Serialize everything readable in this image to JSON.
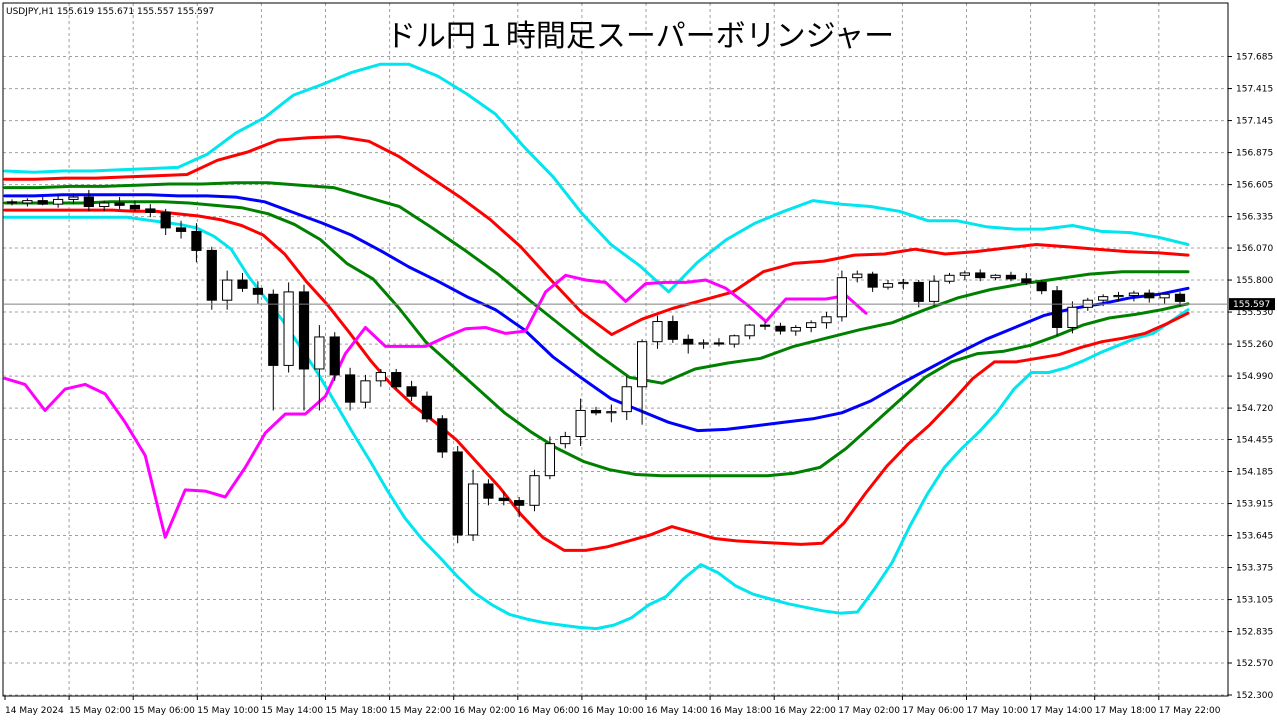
{
  "window": {
    "symbol_info": "USDJPY,H1  155.619 155.671 155.557 155.597"
  },
  "chart_data": {
    "type": "candlestick",
    "title": "ドル円１時間足スーパーボリンジャー",
    "ylim": [
      152.3,
      157.85
    ],
    "y_ticks": [
      "157.685",
      "157.415",
      "157.145",
      "156.875",
      "156.605",
      "156.335",
      "156.070",
      "155.800",
      "155.530",
      "155.260",
      "154.990",
      "154.720",
      "154.455",
      "154.185",
      "153.915",
      "153.645",
      "153.375",
      "153.105",
      "152.835",
      "152.570",
      "152.300"
    ],
    "x_ticks": [
      "14 May 2024",
      "15 May 02:00",
      "15 May 06:00",
      "15 May 10:00",
      "15 May 14:00",
      "15 May 18:00",
      "15 May 22:00",
      "16 May 02:00",
      "16 May 06:00",
      "16 May 10:00",
      "16 May 14:00",
      "16 May 18:00",
      "16 May 22:00",
      "17 May 02:00",
      "17 May 06:00",
      "17 May 10:00",
      "17 May 14:00",
      "17 May 18:00",
      "17 May 22:00"
    ],
    "current_price": "155.597",
    "candles": [
      {
        "o": 156.46,
        "h": 156.48,
        "l": 156.43,
        "c": 156.45
      },
      {
        "o": 156.45,
        "h": 156.49,
        "l": 156.42,
        "c": 156.47
      },
      {
        "o": 156.47,
        "h": 156.5,
        "l": 156.43,
        "c": 156.44
      },
      {
        "o": 156.44,
        "h": 156.52,
        "l": 156.41,
        "c": 156.48
      },
      {
        "o": 156.48,
        "h": 156.53,
        "l": 156.44,
        "c": 156.5
      },
      {
        "o": 156.5,
        "h": 156.56,
        "l": 156.38,
        "c": 156.42
      },
      {
        "o": 156.42,
        "h": 156.47,
        "l": 156.38,
        "c": 156.45
      },
      {
        "o": 156.45,
        "h": 156.5,
        "l": 156.4,
        "c": 156.43
      },
      {
        "o": 156.43,
        "h": 156.47,
        "l": 156.38,
        "c": 156.4
      },
      {
        "o": 156.4,
        "h": 156.44,
        "l": 156.33,
        "c": 156.37
      },
      {
        "o": 156.37,
        "h": 156.4,
        "l": 156.18,
        "c": 156.24
      },
      {
        "o": 156.24,
        "h": 156.3,
        "l": 156.15,
        "c": 156.21
      },
      {
        "o": 156.21,
        "h": 156.28,
        "l": 155.95,
        "c": 156.05
      },
      {
        "o": 156.05,
        "h": 156.08,
        "l": 155.55,
        "c": 155.63
      },
      {
        "o": 155.63,
        "h": 155.88,
        "l": 155.55,
        "c": 155.8
      },
      {
        "o": 155.8,
        "h": 155.86,
        "l": 155.7,
        "c": 155.73
      },
      {
        "o": 155.73,
        "h": 155.79,
        "l": 155.6,
        "c": 155.68
      },
      {
        "o": 155.68,
        "h": 155.72,
        "l": 154.7,
        "c": 155.08
      },
      {
        "o": 155.08,
        "h": 155.78,
        "l": 155.02,
        "c": 155.7
      },
      {
        "o": 155.7,
        "h": 155.76,
        "l": 154.7,
        "c": 155.05
      },
      {
        "o": 155.05,
        "h": 155.42,
        "l": 154.7,
        "c": 155.32
      },
      {
        "o": 155.32,
        "h": 155.36,
        "l": 154.95,
        "c": 155.0
      },
      {
        "o": 155.0,
        "h": 155.06,
        "l": 154.7,
        "c": 154.77
      },
      {
        "o": 154.77,
        "h": 155.0,
        "l": 154.72,
        "c": 154.95
      },
      {
        "o": 154.95,
        "h": 155.05,
        "l": 154.9,
        "c": 155.02
      },
      {
        "o": 155.02,
        "h": 155.05,
        "l": 154.88,
        "c": 154.9
      },
      {
        "o": 154.9,
        "h": 154.95,
        "l": 154.78,
        "c": 154.82
      },
      {
        "o": 154.82,
        "h": 154.86,
        "l": 154.6,
        "c": 154.63
      },
      {
        "o": 154.63,
        "h": 154.66,
        "l": 154.3,
        "c": 154.35
      },
      {
        "o": 154.35,
        "h": 154.4,
        "l": 153.58,
        "c": 153.65
      },
      {
        "o": 153.65,
        "h": 154.2,
        "l": 153.6,
        "c": 154.08
      },
      {
        "o": 154.08,
        "h": 154.12,
        "l": 153.9,
        "c": 153.96
      },
      {
        "o": 153.96,
        "h": 154.02,
        "l": 153.9,
        "c": 153.94
      },
      {
        "o": 153.94,
        "h": 153.97,
        "l": 153.8,
        "c": 153.9
      },
      {
        "o": 153.9,
        "h": 154.2,
        "l": 153.85,
        "c": 154.15
      },
      {
        "o": 154.15,
        "h": 154.48,
        "l": 154.12,
        "c": 154.42
      },
      {
        "o": 154.42,
        "h": 154.52,
        "l": 154.38,
        "c": 154.48
      },
      {
        "o": 154.48,
        "h": 154.8,
        "l": 154.4,
        "c": 154.7
      },
      {
        "o": 154.7,
        "h": 154.73,
        "l": 154.66,
        "c": 154.68
      },
      {
        "o": 154.68,
        "h": 154.75,
        "l": 154.6,
        "c": 154.69
      },
      {
        "o": 154.69,
        "h": 154.99,
        "l": 154.62,
        "c": 154.9
      },
      {
        "o": 154.9,
        "h": 155.3,
        "l": 154.58,
        "c": 155.28
      },
      {
        "o": 155.28,
        "h": 155.5,
        "l": 155.22,
        "c": 155.45
      },
      {
        "o": 155.45,
        "h": 155.5,
        "l": 155.27,
        "c": 155.3
      },
      {
        "o": 155.3,
        "h": 155.34,
        "l": 155.18,
        "c": 155.26
      },
      {
        "o": 155.26,
        "h": 155.3,
        "l": 155.22,
        "c": 155.27
      },
      {
        "o": 155.27,
        "h": 155.31,
        "l": 155.24,
        "c": 155.26
      },
      {
        "o": 155.26,
        "h": 155.34,
        "l": 155.23,
        "c": 155.33
      },
      {
        "o": 155.33,
        "h": 155.43,
        "l": 155.3,
        "c": 155.42
      },
      {
        "o": 155.42,
        "h": 155.45,
        "l": 155.38,
        "c": 155.41
      },
      {
        "o": 155.41,
        "h": 155.44,
        "l": 155.34,
        "c": 155.37
      },
      {
        "o": 155.37,
        "h": 155.42,
        "l": 155.33,
        "c": 155.4
      },
      {
        "o": 155.4,
        "h": 155.46,
        "l": 155.36,
        "c": 155.44
      },
      {
        "o": 155.44,
        "h": 155.53,
        "l": 155.39,
        "c": 155.49
      },
      {
        "o": 155.49,
        "h": 155.88,
        "l": 155.45,
        "c": 155.82
      },
      {
        "o": 155.82,
        "h": 155.88,
        "l": 155.78,
        "c": 155.85
      },
      {
        "o": 155.85,
        "h": 155.87,
        "l": 155.7,
        "c": 155.74
      },
      {
        "o": 155.74,
        "h": 155.8,
        "l": 155.72,
        "c": 155.77
      },
      {
        "o": 155.77,
        "h": 155.81,
        "l": 155.72,
        "c": 155.78
      },
      {
        "o": 155.78,
        "h": 155.8,
        "l": 155.57,
        "c": 155.62
      },
      {
        "o": 155.62,
        "h": 155.84,
        "l": 155.58,
        "c": 155.79
      },
      {
        "o": 155.79,
        "h": 155.86,
        "l": 155.77,
        "c": 155.84
      },
      {
        "o": 155.84,
        "h": 155.88,
        "l": 155.8,
        "c": 155.86
      },
      {
        "o": 155.86,
        "h": 155.89,
        "l": 155.79,
        "c": 155.82
      },
      {
        "o": 155.82,
        "h": 155.85,
        "l": 155.8,
        "c": 155.84
      },
      {
        "o": 155.84,
        "h": 155.87,
        "l": 155.79,
        "c": 155.81
      },
      {
        "o": 155.81,
        "h": 155.86,
        "l": 155.76,
        "c": 155.78
      },
      {
        "o": 155.78,
        "h": 155.8,
        "l": 155.68,
        "c": 155.71
      },
      {
        "o": 155.71,
        "h": 155.75,
        "l": 155.33,
        "c": 155.4
      },
      {
        "o": 155.4,
        "h": 155.62,
        "l": 155.35,
        "c": 155.57
      },
      {
        "o": 155.57,
        "h": 155.65,
        "l": 155.54,
        "c": 155.63
      },
      {
        "o": 155.63,
        "h": 155.68,
        "l": 155.58,
        "c": 155.66
      },
      {
        "o": 155.66,
        "h": 155.7,
        "l": 155.62,
        "c": 155.67
      },
      {
        "o": 155.67,
        "h": 155.71,
        "l": 155.62,
        "c": 155.69
      },
      {
        "o": 155.69,
        "h": 155.72,
        "l": 155.61,
        "c": 155.65
      },
      {
        "o": 155.65,
        "h": 155.69,
        "l": 155.6,
        "c": 155.68
      },
      {
        "o": 155.68,
        "h": 155.7,
        "l": 155.58,
        "c": 155.62
      }
    ],
    "series": [
      {
        "color": "#00e5ee",
        "values": [
          156.33,
          156.33,
          156.33,
          156.33,
          156.33,
          156.33,
          156.33,
          156.33,
          156.31,
          156.29,
          156.27,
          156.24,
          156.17,
          156.06,
          155.83,
          155.64,
          155.45,
          155.23,
          155.01,
          154.76,
          154.51,
          154.27,
          154.02,
          153.79,
          153.61,
          153.46,
          153.3,
          153.16,
          153.06,
          152.98,
          152.94,
          152.91,
          152.89,
          152.87,
          152.86,
          152.89,
          152.95,
          153.06,
          153.13,
          153.28,
          153.4,
          153.33,
          153.22,
          153.15,
          153.11,
          153.07,
          153.04,
          153.01,
          152.99,
          153.0,
          153.2,
          153.42,
          153.72,
          153.99,
          154.22,
          154.38,
          154.52,
          154.68,
          154.88,
          155.02,
          155.02,
          155.06,
          155.12,
          155.19,
          155.25,
          155.31,
          155.35,
          155.45,
          155.55
        ]
      },
      {
        "color": "#ff0000",
        "values": [
          156.39,
          156.39,
          156.39,
          156.39,
          156.39,
          156.39,
          156.38,
          156.38,
          156.36,
          156.34,
          156.31,
          156.26,
          156.18,
          156.02,
          155.79,
          155.59,
          155.36,
          155.12,
          154.91,
          154.74,
          154.6,
          154.45,
          154.25,
          154.05,
          153.82,
          153.63,
          153.52,
          153.52,
          153.55,
          153.6,
          153.65,
          153.72,
          153.67,
          153.62,
          153.6,
          153.59,
          153.58,
          153.57,
          153.58,
          153.75,
          154.0,
          154.23,
          154.42,
          154.58,
          154.77,
          154.97,
          155.11,
          155.11,
          155.14,
          155.17,
          155.23,
          155.28,
          155.31,
          155.35,
          155.43,
          155.52
        ]
      },
      {
        "color": "#008000",
        "values": [
          156.45,
          156.45,
          156.45,
          156.45,
          156.46,
          156.46,
          156.46,
          156.45,
          156.43,
          156.41,
          156.36,
          156.27,
          156.14,
          155.94,
          155.81,
          155.56,
          155.28,
          155.08,
          154.88,
          154.68,
          154.52,
          154.38,
          154.27,
          154.2,
          154.16,
          154.15,
          154.15,
          154.15,
          154.15,
          154.15,
          154.17,
          154.22,
          154.38,
          154.58,
          154.78,
          154.98,
          155.11,
          155.18,
          155.2,
          155.25,
          155.33,
          155.42,
          155.48,
          155.51,
          155.55,
          155.6
        ]
      },
      {
        "color": "#0000ff",
        "values": [
          156.51,
          156.51,
          156.52,
          156.52,
          156.52,
          156.52,
          156.51,
          156.51,
          156.5,
          156.46,
          156.37,
          156.28,
          156.18,
          156.05,
          155.91,
          155.79,
          155.66,
          155.55,
          155.38,
          155.15,
          154.97,
          154.8,
          154.7,
          154.6,
          154.53,
          154.54,
          154.57,
          154.6,
          154.63,
          154.68,
          154.78,
          154.92,
          155.05,
          155.18,
          155.3,
          155.4,
          155.5,
          155.56,
          155.6,
          155.65,
          155.68,
          155.73
        ]
      },
      {
        "color": "#008000",
        "values": [
          156.58,
          156.58,
          156.59,
          156.59,
          156.6,
          156.61,
          156.61,
          156.62,
          156.62,
          156.6,
          156.58,
          156.5,
          156.42,
          156.24,
          156.05,
          155.85,
          155.62,
          155.4,
          155.18,
          154.98,
          154.93,
          155.05,
          155.1,
          155.14,
          155.24,
          155.31,
          155.38,
          155.44,
          155.55,
          155.65,
          155.72,
          155.77,
          155.81,
          155.85,
          155.87,
          155.87,
          155.87
        ]
      },
      {
        "color": "#ff0000",
        "values": [
          156.65,
          156.65,
          156.66,
          156.66,
          156.67,
          156.68,
          156.69,
          156.81,
          156.88,
          156.98,
          157.0,
          157.01,
          156.97,
          156.84,
          156.67,
          156.5,
          156.31,
          156.08,
          155.8,
          155.53,
          155.34,
          155.47,
          155.56,
          155.63,
          155.7,
          155.87,
          155.94,
          155.96,
          156.01,
          156.02,
          156.06,
          156.02,
          156.04,
          156.07,
          156.1,
          156.08,
          156.06,
          156.04,
          156.03,
          156.01
        ]
      },
      {
        "color": "#00e5ee",
        "values": [
          156.72,
          156.71,
          156.72,
          156.72,
          156.73,
          156.74,
          156.75,
          156.86,
          157.04,
          157.17,
          157.36,
          157.45,
          157.55,
          157.62,
          157.62,
          157.52,
          157.37,
          157.2,
          156.92,
          156.67,
          156.36,
          156.1,
          155.92,
          155.7,
          155.95,
          156.14,
          156.28,
          156.38,
          156.47,
          156.44,
          156.42,
          156.38,
          156.3,
          156.3,
          156.25,
          156.23,
          156.23,
          156.26,
          156.21,
          156.2,
          156.16,
          156.1
        ]
      },
      {
        "color": "#ff00ff",
        "values": [
          154.97,
          154.92,
          154.7,
          154.88,
          154.92,
          154.84,
          154.6,
          154.32,
          153.63,
          154.03,
          154.02,
          153.97,
          154.22,
          154.51,
          154.67,
          154.67,
          154.82,
          155.18,
          155.4,
          155.24,
          155.24,
          155.24,
          155.32,
          155.39,
          155.4,
          155.35,
          155.37,
          155.7,
          155.84,
          155.8,
          155.78,
          155.62,
          155.77,
          155.78,
          155.78,
          155.8,
          155.73,
          155.6,
          155.45,
          155.64,
          155.64,
          155.64,
          155.67,
          155.52
        ]
      }
    ]
  }
}
